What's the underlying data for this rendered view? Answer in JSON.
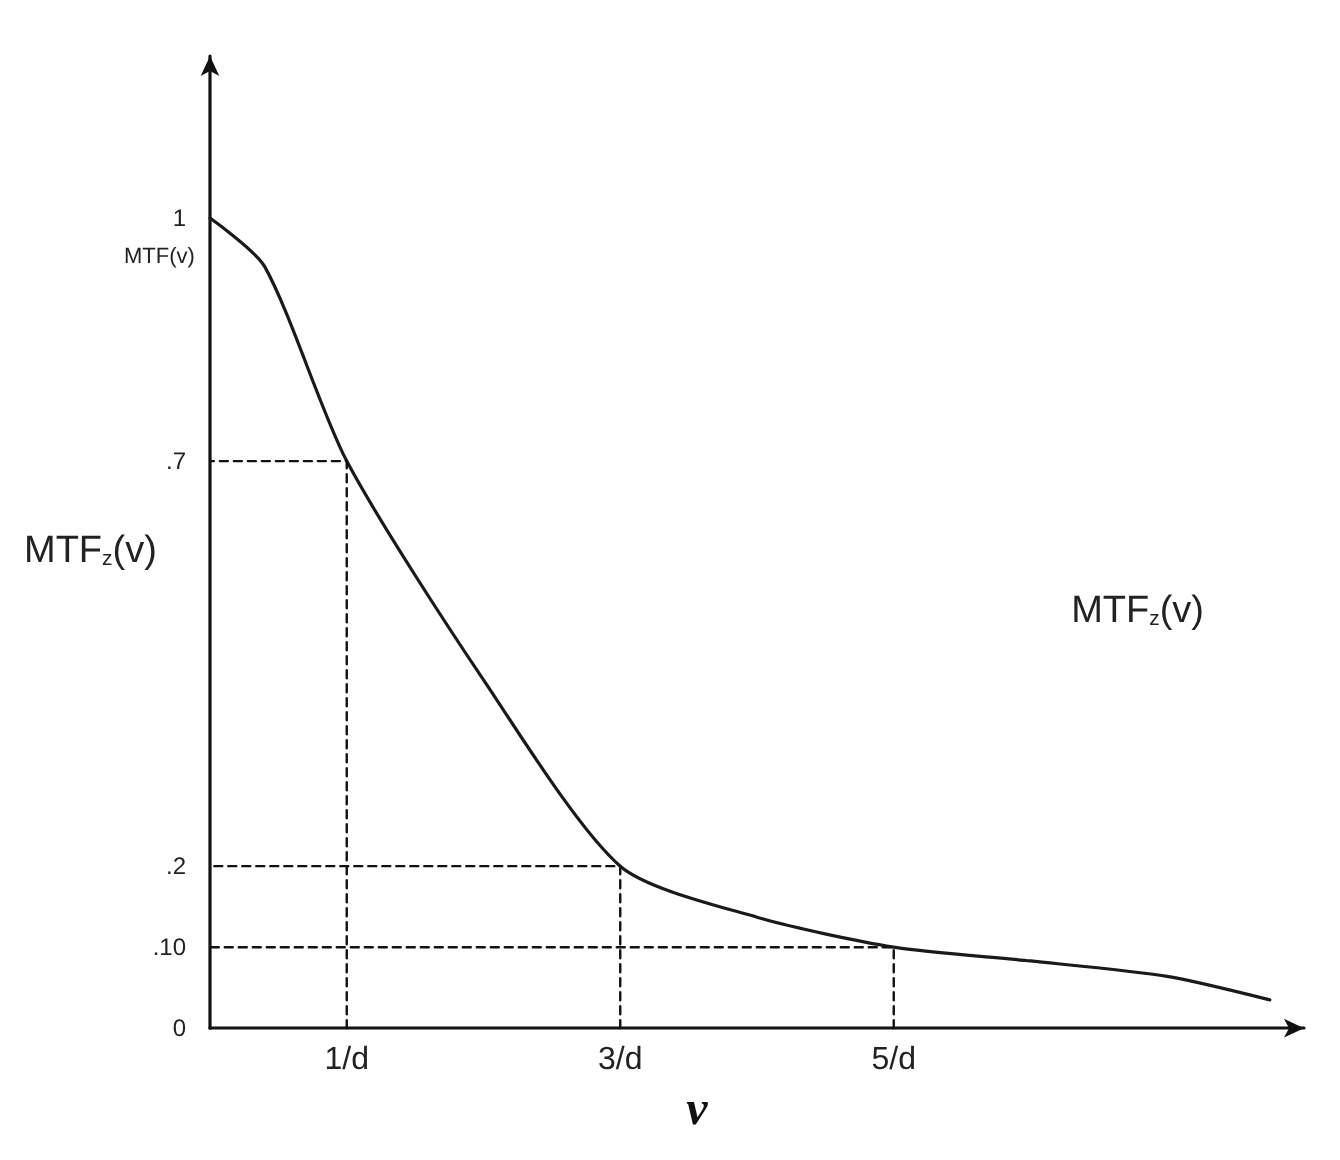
{
  "chart_data": {
    "type": "line",
    "xlabel": "v",
    "ylabel": "MTF$_{z}$(v)",
    "annotations": [
      "MTF(v)",
      "MTF$_{z}$(v)"
    ],
    "x": [
      0,
      0.4,
      1,
      2,
      3,
      4,
      5,
      6,
      7,
      7.75
    ],
    "series": [
      {
        "color": "#1a1a1a",
        "values": [
          1,
          0.94,
          0.7,
          0.43,
          0.2,
          0.137,
          0.1,
          0.083,
          0.064,
          0.035
        ]
      },
      {
        "color": "#111111",
        "line_style": "dashed",
        "x": [
          1,
          1,
          0
        ],
        "values": [
          0,
          0.7,
          0.7
        ]
      },
      {
        "color": "#111111",
        "line_style": "dashed",
        "x": [
          3,
          3,
          0
        ],
        "values": [
          0,
          0.2,
          0.2
        ]
      },
      {
        "color": "#111111",
        "line_style": "dashed",
        "x": [
          5,
          5,
          0
        ],
        "values": [
          0,
          0.1,
          0.1
        ]
      }
    ],
    "xlim": [
      0,
      8
    ],
    "xticks": [
      {
        "value": 1,
        "label": "1/d"
      },
      {
        "value": 3,
        "label": "3/d"
      },
      {
        "value": 5,
        "label": "5/d"
      }
    ],
    "ylim": [
      0,
      1.2
    ],
    "yticks": [
      0,
      {
        "value": 0.1,
        "label": ".10"
      },
      {
        "value": 0.2,
        "label": ".2"
      },
      {
        "value": 0.7,
        "label": ".7"
      },
      1
    ],
    "grid": false,
    "marker": "none",
    "line_style": "solid"
  }
}
